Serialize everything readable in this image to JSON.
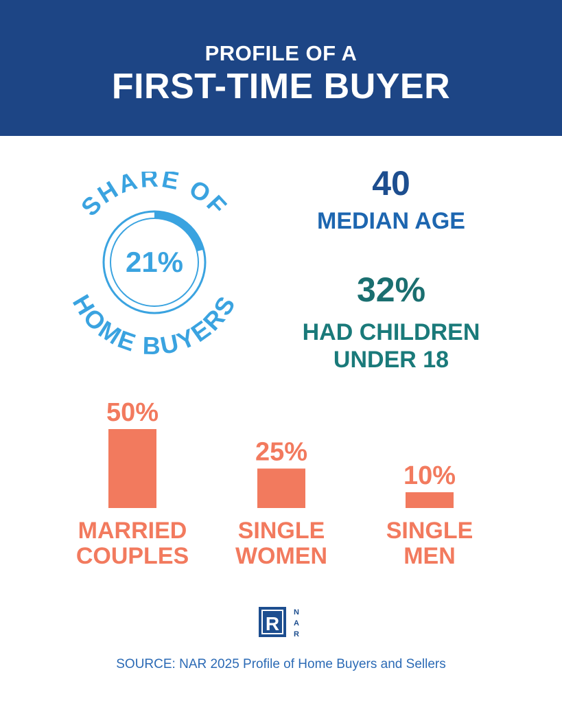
{
  "header": {
    "line1": "PROFILE OF A",
    "line2": "FIRST-TIME BUYER"
  },
  "share": {
    "arc_top": "SHARE OF",
    "arc_bottom": "HOME BUYERS",
    "value_label": "21%",
    "value": 21
  },
  "median_age": {
    "value": "40",
    "label": "MEDIAN AGE"
  },
  "children": {
    "value": "32%",
    "label_line1": "HAD CHILDREN",
    "label_line2": "UNDER 18"
  },
  "chart_data": {
    "type": "bar",
    "categories": [
      [
        "MARRIED",
        "COUPLES"
      ],
      [
        "SINGLE",
        "WOMEN"
      ],
      [
        "SINGLE",
        "MEN"
      ]
    ],
    "values": [
      50,
      25,
      10
    ],
    "value_labels": [
      "50%",
      "25%",
      "10%"
    ],
    "ylim": [
      0,
      50
    ],
    "grid": false
  },
  "logo": {
    "letter": "R",
    "side_text": [
      "N",
      "A",
      "R"
    ]
  },
  "source": "SOURCE: NAR 2025 Profile of Home Buyers and Sellers",
  "colors": {
    "header_bg": "#1d4585",
    "share_blue": "#3aa3e0",
    "age_blue": "#1d4e8f",
    "teal": "#1a7a7a",
    "bar_coral": "#f27a5e",
    "source_blue": "#2b6ab5"
  }
}
